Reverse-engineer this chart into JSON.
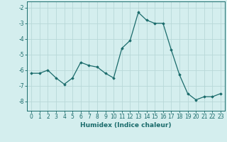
{
  "x": [
    0,
    1,
    2,
    3,
    4,
    5,
    6,
    7,
    8,
    9,
    10,
    11,
    12,
    13,
    14,
    15,
    16,
    17,
    18,
    19,
    20,
    21,
    22,
    23
  ],
  "y": [
    -6.2,
    -6.2,
    -6.0,
    -6.5,
    -6.9,
    -6.5,
    -5.5,
    -5.7,
    -5.8,
    -6.2,
    -6.5,
    -4.6,
    -4.1,
    -2.3,
    -2.8,
    -3.0,
    -3.0,
    -4.7,
    -6.3,
    -7.5,
    -7.9,
    -7.7,
    -7.7,
    -7.5
  ],
  "line_color": "#1a6b6b",
  "marker": "D",
  "marker_size": 1.8,
  "bg_color": "#d4eeee",
  "grid_color": "#b8d8d8",
  "xlabel": "Humidex (Indice chaleur)",
  "xlim": [
    -0.5,
    23.5
  ],
  "ylim": [
    -8.6,
    -1.6
  ],
  "yticks": [
    -8,
    -7,
    -6,
    -5,
    -4,
    -3,
    -2
  ],
  "xticks": [
    0,
    1,
    2,
    3,
    4,
    5,
    6,
    7,
    8,
    9,
    10,
    11,
    12,
    13,
    14,
    15,
    16,
    17,
    18,
    19,
    20,
    21,
    22,
    23
  ],
  "xtick_labels": [
    "0",
    "1",
    "2",
    "3",
    "4",
    "5",
    "6",
    "7",
    "8",
    "9",
    "10",
    "11",
    "12",
    "13",
    "14",
    "15",
    "16",
    "17",
    "18",
    "19",
    "20",
    "21",
    "22",
    "23"
  ],
  "tick_color": "#1a6b6b",
  "label_fontsize": 6.5,
  "tick_fontsize": 5.5
}
